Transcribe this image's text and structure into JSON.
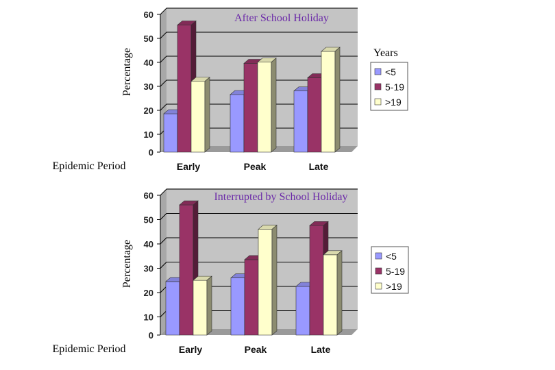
{
  "legend_title": "Years",
  "chart_data": [
    {
      "type": "bar",
      "title": "After School Holiday",
      "xlabel": "Epidemic Period",
      "ylabel": "Percentage",
      "categories": [
        "Early",
        "Peak",
        "Late"
      ],
      "ylim": [
        0,
        60
      ],
      "yticks": [
        0,
        10,
        20,
        30,
        40,
        50,
        60
      ],
      "grid": true,
      "legend": "right",
      "series": [
        {
          "name": "<5",
          "values": [
            16,
            24,
            25.5
          ],
          "color": "#9999ff"
        },
        {
          "name": "5-19",
          "values": [
            53,
            37,
            31
          ],
          "color": "#993366"
        },
        {
          "name": ">19",
          "values": [
            29.5,
            37.5,
            42
          ],
          "color": "#ffffcc"
        }
      ]
    },
    {
      "type": "bar",
      "title": "Interrupted by School Holiday",
      "xlabel": "Epidemic Period",
      "ylabel": "Percentage",
      "categories": [
        "Early",
        "Peak",
        "Late"
      ],
      "ylim": [
        0,
        60
      ],
      "yticks": [
        0,
        10,
        20,
        30,
        40,
        50,
        60
      ],
      "grid": true,
      "legend": "right",
      "series": [
        {
          "name": "<5",
          "values": [
            22,
            23.5,
            20
          ],
          "color": "#9999ff"
        },
        {
          "name": "5-19",
          "values": [
            53.5,
            31,
            45
          ],
          "color": "#993366"
        },
        {
          "name": ">19",
          "values": [
            22.5,
            43.5,
            33
          ],
          "color": "#ffffcc"
        }
      ]
    }
  ]
}
